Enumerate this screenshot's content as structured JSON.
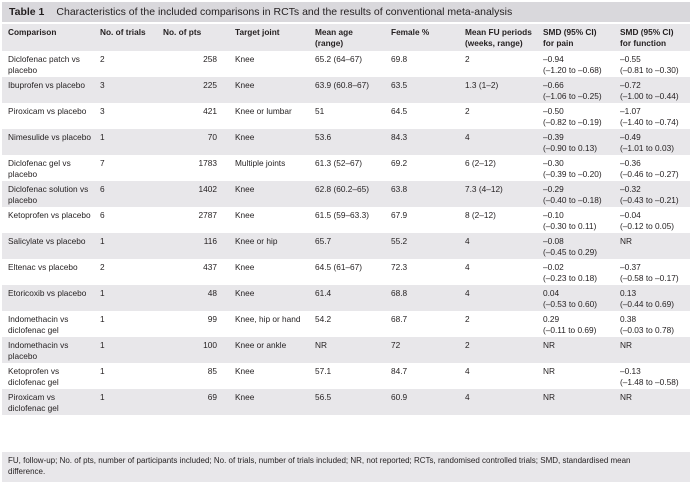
{
  "title": {
    "number": "Table 1",
    "text": "Characteristics of the included comparisons in RCTs and the results of conventional meta-analysis"
  },
  "headers": [
    [
      "Comparison"
    ],
    [
      "No. of trials"
    ],
    [
      "No. of pts"
    ],
    [
      "Target joint"
    ],
    [
      "Mean age",
      "(range)"
    ],
    [
      "Female %"
    ],
    [
      "Mean FU periods",
      "(weeks, range)"
    ],
    [
      "SMD (95% CI)",
      "for pain"
    ],
    [
      "SMD (95% CI)",
      "for function"
    ]
  ],
  "rows": [
    [
      [
        "Diclofenac patch vs",
        "placebo"
      ],
      [
        "2"
      ],
      [
        "258"
      ],
      [
        "Knee"
      ],
      [
        "65.2 (64–67)"
      ],
      [
        "69.8"
      ],
      [
        "2"
      ],
      [
        "–0.94",
        "(–1.20 to –0.68)"
      ],
      [
        "–0.55",
        "(–0.81 to –0.30)"
      ]
    ],
    [
      [
        "Ibuprofen vs placebo"
      ],
      [
        "3"
      ],
      [
        "225"
      ],
      [
        "Knee"
      ],
      [
        "63.9 (60.8–67)"
      ],
      [
        "63.5"
      ],
      [
        "1.3 (1–2)"
      ],
      [
        "–0.66",
        "(–1.06 to –0.25)"
      ],
      [
        "–0.72",
        "(–1.00 to –0.44)"
      ]
    ],
    [
      [
        "Piroxicam vs placebo"
      ],
      [
        "3"
      ],
      [
        "421"
      ],
      [
        "Knee or lumbar"
      ],
      [
        "51"
      ],
      [
        "64.5"
      ],
      [
        "2"
      ],
      [
        "–0.50",
        "(–0.82 to –0.19)"
      ],
      [
        "–1.07",
        "(–1.40 to –0.74)"
      ]
    ],
    [
      [
        "Nimesulide vs placebo"
      ],
      [
        "1"
      ],
      [
        "70"
      ],
      [
        "Knee"
      ],
      [
        "53.6"
      ],
      [
        "84.3"
      ],
      [
        "4"
      ],
      [
        "–0.39",
        "(–0.90 to 0.13)"
      ],
      [
        "–0.49",
        "(–1.01 to 0.03)"
      ]
    ],
    [
      [
        "Diclofenac gel vs",
        "placebo"
      ],
      [
        "7"
      ],
      [
        "1783"
      ],
      [
        "Multiple joints"
      ],
      [
        "61.3 (52–67)"
      ],
      [
        "69.2"
      ],
      [
        "6 (2–12)"
      ],
      [
        "–0.30",
        "(–0.39 to –0.20)"
      ],
      [
        "–0.36",
        "(–0.46 to –0.27)"
      ]
    ],
    [
      [
        "Diclofenac solution vs",
        "placebo"
      ],
      [
        "6"
      ],
      [
        "1402"
      ],
      [
        "Knee"
      ],
      [
        "62.8 (60.2–65)"
      ],
      [
        "63.8"
      ],
      [
        "7.3 (4–12)"
      ],
      [
        "–0.29",
        "(–0.40 to –0.18)"
      ],
      [
        "–0.32",
        "(–0.43 to –0.21)"
      ]
    ],
    [
      [
        "Ketoprofen vs placebo"
      ],
      [
        "6"
      ],
      [
        "2787"
      ],
      [
        "Knee"
      ],
      [
        "61.5 (59–63.3)"
      ],
      [
        "67.9"
      ],
      [
        "8 (2–12)"
      ],
      [
        "–0.10",
        "(–0.30 to 0.11)"
      ],
      [
        "–0.04",
        "(–0.12 to 0.05)"
      ]
    ],
    [
      [
        "Salicylate vs placebo"
      ],
      [
        "1"
      ],
      [
        "116"
      ],
      [
        "Knee or hip"
      ],
      [
        "65.7"
      ],
      [
        "55.2"
      ],
      [
        "4"
      ],
      [
        "–0.08",
        "(–0.45 to 0.29)"
      ],
      [
        "NR"
      ]
    ],
    [
      [
        "Eltenac vs placebo"
      ],
      [
        "2"
      ],
      [
        "437"
      ],
      [
        "Knee"
      ],
      [
        "64.5 (61–67)"
      ],
      [
        "72.3"
      ],
      [
        "4"
      ],
      [
        "–0.02",
        "(–0.23 to 0.18)"
      ],
      [
        "–0.37",
        "(–0.58 to –0.17)"
      ]
    ],
    [
      [
        "Etoricoxib vs placebo"
      ],
      [
        "1"
      ],
      [
        "48"
      ],
      [
        "Knee"
      ],
      [
        "61.4"
      ],
      [
        "68.8"
      ],
      [
        "4"
      ],
      [
        "0.04",
        "(–0.53 to 0.60)"
      ],
      [
        "0.13",
        "(–0.44 to 0.69)"
      ]
    ],
    [
      [
        "Indomethacin vs",
        "diclofenac gel"
      ],
      [
        "1"
      ],
      [
        "99"
      ],
      [
        "Knee, hip or hand"
      ],
      [
        "54.2"
      ],
      [
        "68.7"
      ],
      [
        "2"
      ],
      [
        "0.29",
        "(–0.11 to 0.69)"
      ],
      [
        "0.38",
        "(–0.03 to 0.78)"
      ]
    ],
    [
      [
        "Indomethacin vs",
        "placebo"
      ],
      [
        "1"
      ],
      [
        "100"
      ],
      [
        "Knee or ankle"
      ],
      [
        "NR"
      ],
      [
        "72"
      ],
      [
        "2"
      ],
      [
        "NR"
      ],
      [
        "NR"
      ]
    ],
    [
      [
        "Ketoprofen vs",
        "diclofenac gel"
      ],
      [
        "1"
      ],
      [
        "85"
      ],
      [
        "Knee"
      ],
      [
        "57.1"
      ],
      [
        "84.7"
      ],
      [
        "4"
      ],
      [
        "NR"
      ],
      [
        "–0.13",
        "(–1.48 to –0.58)"
      ]
    ],
    [
      [
        "Piroxicam vs",
        "diclofenac gel"
      ],
      [
        "1"
      ],
      [
        "69"
      ],
      [
        "Knee"
      ],
      [
        "56.5"
      ],
      [
        "60.9"
      ],
      [
        "4"
      ],
      [
        "NR"
      ],
      [
        "NR"
      ]
    ]
  ],
  "footnote": [
    "FU, follow-up; No. of pts, number of participants included; No. of trials, number of trials included; NR, not reported; RCTs, randomised controlled trials; SMD, standardised mean",
    "difference."
  ]
}
